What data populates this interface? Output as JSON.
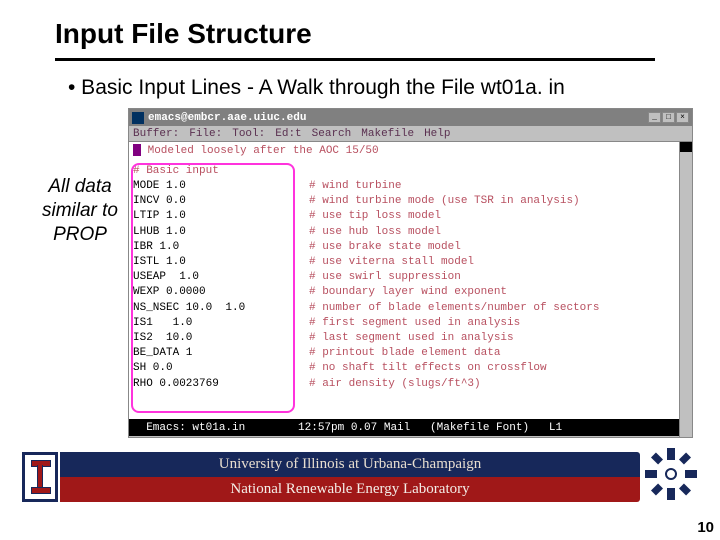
{
  "title": "Input File Structure",
  "bullet": "•   Basic Input Lines - A Walk through the File wt01a. in",
  "annotation": "All data similar to PROP",
  "window": {
    "title": "emacs@embcr.aae.uiuc.edu",
    "menus": [
      "Buffer:",
      "File:",
      "Tool:",
      "Ed:t",
      "Search",
      "Makefile",
      "Help"
    ],
    "line1": " Modeled loosely after the AOC 15/50",
    "block_header": "# Basic input",
    "lines": [
      {
        "l": "MODE 1.0",
        "c": "# wind turbine"
      },
      {
        "l": "INCV 0.0",
        "c": "# wind turbine mode (use TSR in analysis)"
      },
      {
        "l": "LTIP 1.0",
        "c": "# use tip loss model"
      },
      {
        "l": "LHUB 1.0",
        "c": "# use hub loss model"
      },
      {
        "l": "IBR 1.0",
        "c": "# use brake state model"
      },
      {
        "l": "ISTL 1.0",
        "c": "# use viterna stall model"
      },
      {
        "l": "USEAP  1.0",
        "c": "# use swirl suppression"
      },
      {
        "l": "WEXP 0.0000",
        "c": "# boundary layer wind exponent"
      },
      {
        "l": "NS_NSEC 10.0  1.0",
        "c": "# number of blade elements/number of sectors"
      },
      {
        "l": "IS1   1.0",
        "c": "# first segment used in analysis"
      },
      {
        "l": "IS2  10.0",
        "c": "# last segment used in analysis"
      },
      {
        "l": "BE_DATA 1",
        "c": "# printout blade element data"
      },
      {
        "l": "SH 0.0",
        "c": "# no shaft tilt effects on crossflow"
      },
      {
        "l": "RHO 0.0023769",
        "c": "# air density (slugs/ft^3)"
      }
    ],
    "statusbar": "  Emacs: wt01a.in        12:57pm 0.07 Mail   (Makefile Font)   L1"
  },
  "footer": {
    "uiuc": "University of Illinois at Urbana-Champaign",
    "nrel": "National Renewable Energy Laboratory"
  },
  "page_number": "10",
  "colors": {
    "uiuc_blue": "#17285a",
    "nrel_red": "#a01818",
    "comment": "#b85060",
    "highlight": "#ff33dd"
  }
}
